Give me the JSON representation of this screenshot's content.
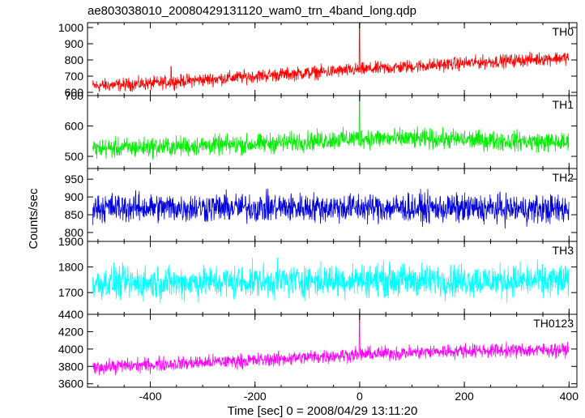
{
  "title": "ae803038010_20080429131120_wam0_trn_4band_long.qdp",
  "xlabel": "Time [sec] 0 = 2008/04/29 13:11:20",
  "ylabel": "Counts/sec",
  "chart_data": {
    "type": "line",
    "x_range": [
      -520,
      415
    ],
    "x_ticks": [
      -400,
      -200,
      0,
      200,
      400
    ],
    "panels": [
      {
        "name": "TH0",
        "color": "#ff0000",
        "ylim": [
          580,
          1030
        ],
        "ticks": [
          600,
          700,
          800,
          900,
          1000
        ],
        "trend": [
          [
            -510,
            640
          ],
          [
            -400,
            655
          ],
          [
            -200,
            700
          ],
          [
            0,
            740
          ],
          [
            200,
            780
          ],
          [
            400,
            815
          ]
        ],
        "noise": 35,
        "spikes": [
          [
            0,
            1030
          ],
          [
            -360,
            760
          ]
        ]
      },
      {
        "name": "TH1",
        "color": "#00ee00",
        "ylim": [
          460,
          700
        ],
        "ticks": [
          500,
          600,
          700
        ],
        "trend": [
          [
            -510,
            525
          ],
          [
            -200,
            540
          ],
          [
            0,
            560
          ],
          [
            200,
            555
          ],
          [
            400,
            545
          ]
        ],
        "noise": 28,
        "spikes": [
          [
            0,
            700
          ]
        ]
      },
      {
        "name": "TH2",
        "color": "#0000dd",
        "ylim": [
          775,
          980
        ],
        "ticks": [
          800,
          850,
          900,
          950
        ],
        "trend": [
          [
            -510,
            870
          ],
          [
            0,
            870
          ],
          [
            400,
            865
          ]
        ],
        "noise": 35,
        "spikes": []
      },
      {
        "name": "TH3",
        "color": "#00ffff",
        "ylim": [
          1615,
          1900
        ],
        "ticks": [
          1700,
          1800,
          1900
        ],
        "trend": [
          [
            -510,
            1735
          ],
          [
            0,
            1750
          ],
          [
            400,
            1745
          ]
        ],
        "noise": 55,
        "spikes": []
      },
      {
        "name": "TH0123",
        "color": "#ff00ff",
        "ylim": [
          3560,
          4400
        ],
        "ticks": [
          3600,
          3800,
          4000,
          4200,
          4400
        ],
        "trend": [
          [
            -510,
            3790
          ],
          [
            -200,
            3870
          ],
          [
            0,
            3940
          ],
          [
            200,
            3980
          ],
          [
            400,
            3990
          ]
        ],
        "noise": 70,
        "spikes": [
          [
            0,
            4400
          ]
        ]
      }
    ]
  }
}
